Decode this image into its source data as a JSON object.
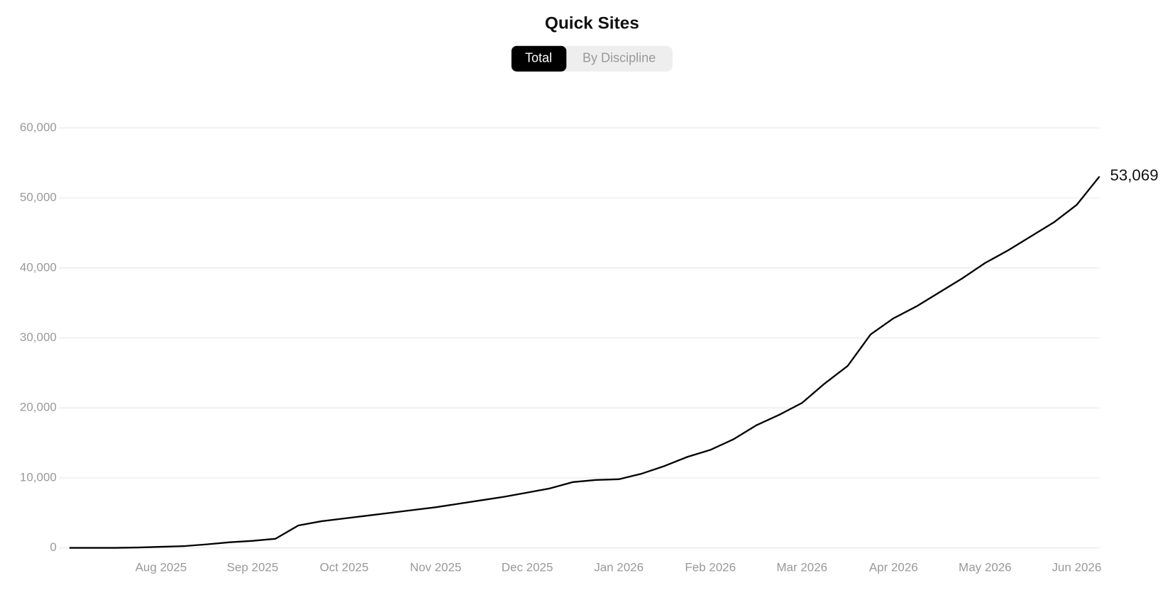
{
  "chart_data": {
    "type": "line",
    "title": "Quick Sites",
    "toggle": [
      "Total",
      "By Discipline"
    ],
    "categories": [
      null,
      null,
      null,
      null,
      "Aug 2025",
      null,
      null,
      null,
      "Sep 2025",
      null,
      null,
      null,
      "Oct 2025",
      null,
      null,
      null,
      "Nov 2025",
      null,
      null,
      null,
      "Dec 2025",
      null,
      null,
      null,
      "Jan 2026",
      null,
      null,
      null,
      "Feb 2026",
      null,
      null,
      null,
      "Mar 2026",
      null,
      null,
      null,
      "Apr 2026",
      null,
      null,
      null,
      "May 2026",
      null,
      null,
      null,
      "Jun 2026",
      null
    ],
    "series": [
      {
        "name": "Total",
        "color": "#000000",
        "values": [
          0,
          0,
          0,
          50,
          150,
          250,
          500,
          800,
          1000,
          1300,
          3200,
          3800,
          4200,
          4600,
          5000,
          5400,
          5800,
          6300,
          6800,
          7300,
          7900,
          8500,
          9400,
          9700,
          9800,
          10600,
          11700,
          13000,
          14000,
          15500,
          17500,
          19000,
          20700,
          23500,
          26000,
          30500,
          32800,
          34500,
          36500,
          38500,
          40700,
          42500,
          44500,
          46500,
          49000,
          53069
        ],
        "value_labels": [
          null,
          null,
          null,
          null,
          null,
          null,
          null,
          null,
          null,
          null,
          null,
          null,
          null,
          null,
          null,
          null,
          null,
          null,
          null,
          null,
          null,
          null,
          null,
          null,
          null,
          null,
          null,
          null,
          null,
          null,
          null,
          null,
          null,
          null,
          null,
          null,
          null,
          null,
          null,
          null,
          null,
          null,
          null,
          null,
          null,
          "53,069"
        ]
      }
    ],
    "ylim": [
      0,
      60000
    ],
    "yticks": [
      0,
      {
        "value": 10000,
        "label": "10,000"
      },
      {
        "value": 20000,
        "label": "20,000"
      },
      {
        "value": 30000,
        "label": "30,000"
      },
      {
        "value": 40000,
        "label": "40,000"
      },
      {
        "value": 50000,
        "label": "50,000"
      },
      {
        "value": 60000,
        "label": "60,000"
      }
    ],
    "grid": true
  }
}
